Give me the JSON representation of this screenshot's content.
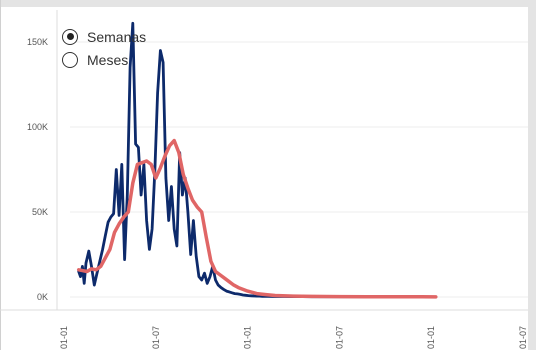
{
  "controls": {
    "radio_options": [
      {
        "label": "Semanas",
        "selected": true
      },
      {
        "label": "Meses",
        "selected": false
      }
    ]
  },
  "chart_data": {
    "type": "line",
    "title": "",
    "xlabel": "",
    "ylabel": "",
    "ylim": [
      0,
      160000
    ],
    "y_ticks": [
      {
        "value": 0,
        "label": "0K"
      },
      {
        "value": 50000,
        "label": "50K"
      },
      {
        "value": 100000,
        "label": "100K"
      },
      {
        "value": 150000,
        "label": "150K"
      }
    ],
    "x_ticks": [
      "01-01",
      "01-07",
      "01-01",
      "01-07",
      "01-01",
      "01-07",
      "01-01",
      "01-07"
    ],
    "grid": "horizontal",
    "colors": {
      "weekly": "#0d2a6b",
      "average": "#e06666",
      "grid": "#eeeeee"
    },
    "series": [
      {
        "key": "weekly",
        "x": [
          0.16,
          0.18,
          0.2,
          0.22,
          0.24,
          0.27,
          0.3,
          0.33,
          0.36,
          0.39,
          0.42,
          0.45,
          0.48,
          0.51,
          0.54,
          0.57,
          0.6,
          0.63,
          0.66,
          0.69,
          0.72,
          0.75,
          0.78,
          0.81,
          0.84,
          0.87,
          0.9,
          0.93,
          0.96,
          0.99,
          1.02,
          1.05,
          1.08,
          1.11,
          1.14,
          1.17,
          1.2,
          1.23,
          1.26,
          1.29,
          1.32,
          1.35,
          1.38,
          1.41,
          1.44,
          1.47,
          1.5,
          1.53,
          1.56,
          1.59,
          1.62,
          1.65,
          1.68,
          1.71,
          1.74,
          1.77,
          1.8,
          1.83,
          1.86,
          1.89,
          1.92,
          1.95,
          1.98,
          2.01,
          2.04,
          2.07,
          2.1,
          2.13,
          2.16,
          2.19,
          2.22,
          2.3,
          2.4,
          2.5,
          2.6,
          2.7,
          2.8,
          2.9,
          3.0,
          3.1,
          3.2,
          3.3,
          3.4,
          3.5,
          3.6,
          3.7,
          3.8,
          3.9,
          4.0,
          4.05
        ],
        "values": [
          15000,
          12000,
          18000,
          8000,
          20000,
          27000,
          18000,
          7000,
          14000,
          21000,
          28000,
          36000,
          44000,
          47000,
          49000,
          75000,
          48000,
          78000,
          22000,
          60000,
          135000,
          161000,
          90000,
          88000,
          60000,
          78000,
          45000,
          28000,
          40000,
          75000,
          120000,
          145000,
          138000,
          70000,
          45000,
          65000,
          40000,
          30000,
          85000,
          60000,
          70000,
          50000,
          25000,
          45000,
          24000,
          12000,
          10000,
          14000,
          8000,
          12000,
          18000,
          10000,
          7000,
          5500,
          4500,
          3500,
          3000,
          2500,
          2000,
          1800,
          1500,
          1200,
          1000,
          800,
          700,
          600,
          500,
          500,
          400,
          400,
          350,
          300,
          300,
          250,
          250,
          200,
          200,
          200,
          150,
          150,
          150,
          120,
          120,
          100,
          100,
          100,
          80,
          80,
          80,
          80
        ]
      },
      {
        "key": "average",
        "x": [
          0.16,
          0.2,
          0.25,
          0.3,
          0.35,
          0.4,
          0.45,
          0.5,
          0.55,
          0.6,
          0.65,
          0.7,
          0.75,
          0.8,
          0.85,
          0.9,
          0.95,
          1.0,
          1.05,
          1.1,
          1.15,
          1.2,
          1.25,
          1.3,
          1.35,
          1.4,
          1.45,
          1.5,
          1.55,
          1.6,
          1.65,
          1.7,
          1.75,
          1.8,
          1.85,
          1.9,
          2.0,
          2.1,
          2.2,
          2.3,
          2.5,
          2.7,
          3.0,
          3.3,
          3.6,
          3.9,
          4.05
        ],
        "values": [
          16000,
          15500,
          15000,
          16500,
          16000,
          18000,
          23000,
          28000,
          38000,
          43000,
          47000,
          50000,
          67000,
          78000,
          79000,
          80000,
          78000,
          70000,
          76000,
          83000,
          89000,
          92000,
          85000,
          72000,
          64000,
          57000,
          53000,
          50000,
          35000,
          21000,
          15000,
          13000,
          11000,
          9000,
          7000,
          5500,
          3500,
          2000,
          1400,
          900,
          500,
          350,
          250,
          180,
          120,
          90,
          80
        ]
      }
    ]
  }
}
